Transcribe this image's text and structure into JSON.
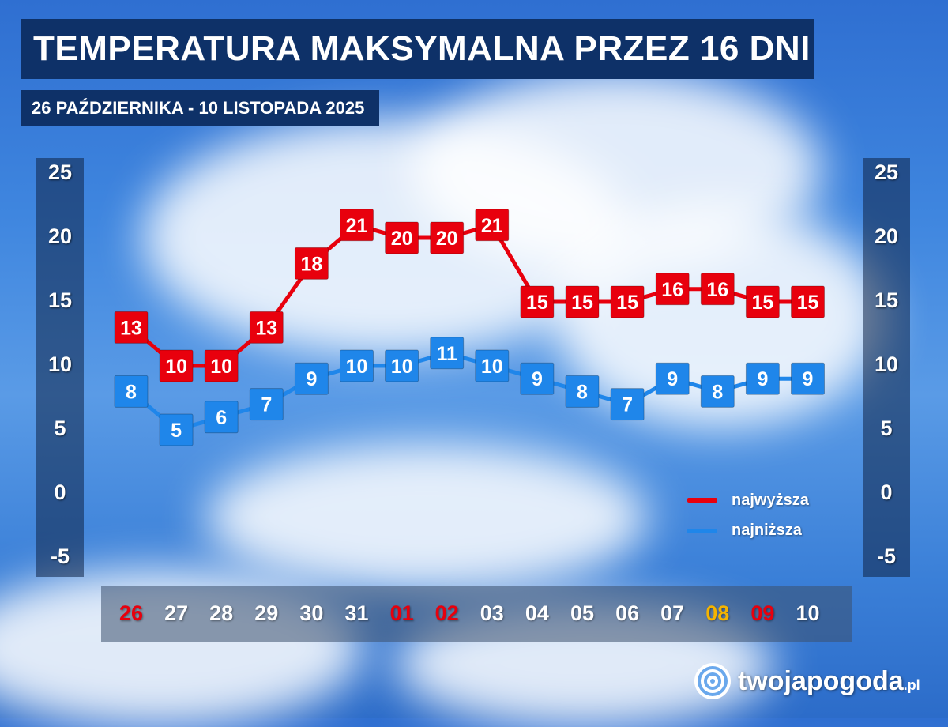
{
  "title": "TEMPERATURA MAKSYMALNA PRZEZ 16 DNI",
  "subtitle": "26 PAŹDZIERNIKA - 10 LISTOPADA 2025",
  "legend": {
    "high": "najwyższa",
    "low": "najniższa"
  },
  "logo": {
    "name": "twojapogoda",
    "tld": ".pl"
  },
  "colors": {
    "high": "#e8000d",
    "low": "#1f86ea",
    "weekend": "#e8000d",
    "holiday": "#f6b400",
    "title_bg": "#0e3168"
  },
  "chart_data": {
    "type": "line",
    "categories": [
      "26",
      "27",
      "28",
      "29",
      "30",
      "31",
      "01",
      "02",
      "03",
      "04",
      "05",
      "06",
      "07",
      "08",
      "09",
      "10"
    ],
    "category_colors": [
      "red",
      "white",
      "white",
      "white",
      "white",
      "white",
      "red",
      "red",
      "white",
      "white",
      "white",
      "white",
      "white",
      "yellow",
      "red",
      "white"
    ],
    "series": [
      {
        "name": "najwyższa",
        "values": [
          13,
          10,
          10,
          13,
          18,
          21,
          20,
          20,
          21,
          15,
          15,
          15,
          16,
          16,
          15,
          15
        ]
      },
      {
        "name": "najniższa",
        "values": [
          8,
          5,
          6,
          7,
          9,
          10,
          10,
          11,
          10,
          9,
          8,
          7,
          9,
          8,
          9,
          9
        ]
      }
    ],
    "yticks": [
      "25",
      "20",
      "15",
      "10",
      "5",
      "0",
      "-5"
    ],
    "ylim": [
      -5,
      25
    ],
    "grid": false,
    "legend_position": "bottom-right"
  }
}
